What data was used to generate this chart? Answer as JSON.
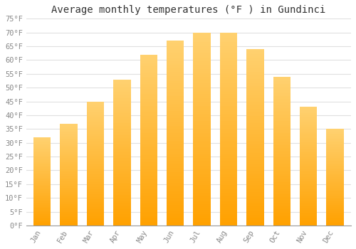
{
  "title": "Average monthly temperatures (°F ) in Gundinci",
  "months": [
    "Jan",
    "Feb",
    "Mar",
    "Apr",
    "May",
    "Jun",
    "Jul",
    "Aug",
    "Sep",
    "Oct",
    "Nov",
    "Dec"
  ],
  "values": [
    32,
    37,
    45,
    53,
    62,
    67,
    70,
    70,
    64,
    54,
    43,
    35
  ],
  "bar_color_face": "#FFA500",
  "bar_color_light": "#FFD060",
  "ylim": [
    0,
    75
  ],
  "yticks": [
    0,
    5,
    10,
    15,
    20,
    25,
    30,
    35,
    40,
    45,
    50,
    55,
    60,
    65,
    70,
    75
  ],
  "ytick_labels": [
    "0°F",
    "5°F",
    "10°F",
    "15°F",
    "20°F",
    "25°F",
    "30°F",
    "35°F",
    "40°F",
    "45°F",
    "50°F",
    "55°F",
    "60°F",
    "65°F",
    "70°F",
    "75°F"
  ],
  "background_color": "#ffffff",
  "grid_color": "#e0e0e0",
  "title_fontsize": 10,
  "tick_fontsize": 7.5,
  "tick_color": "#888888",
  "font_family": "monospace",
  "bar_width": 0.65
}
